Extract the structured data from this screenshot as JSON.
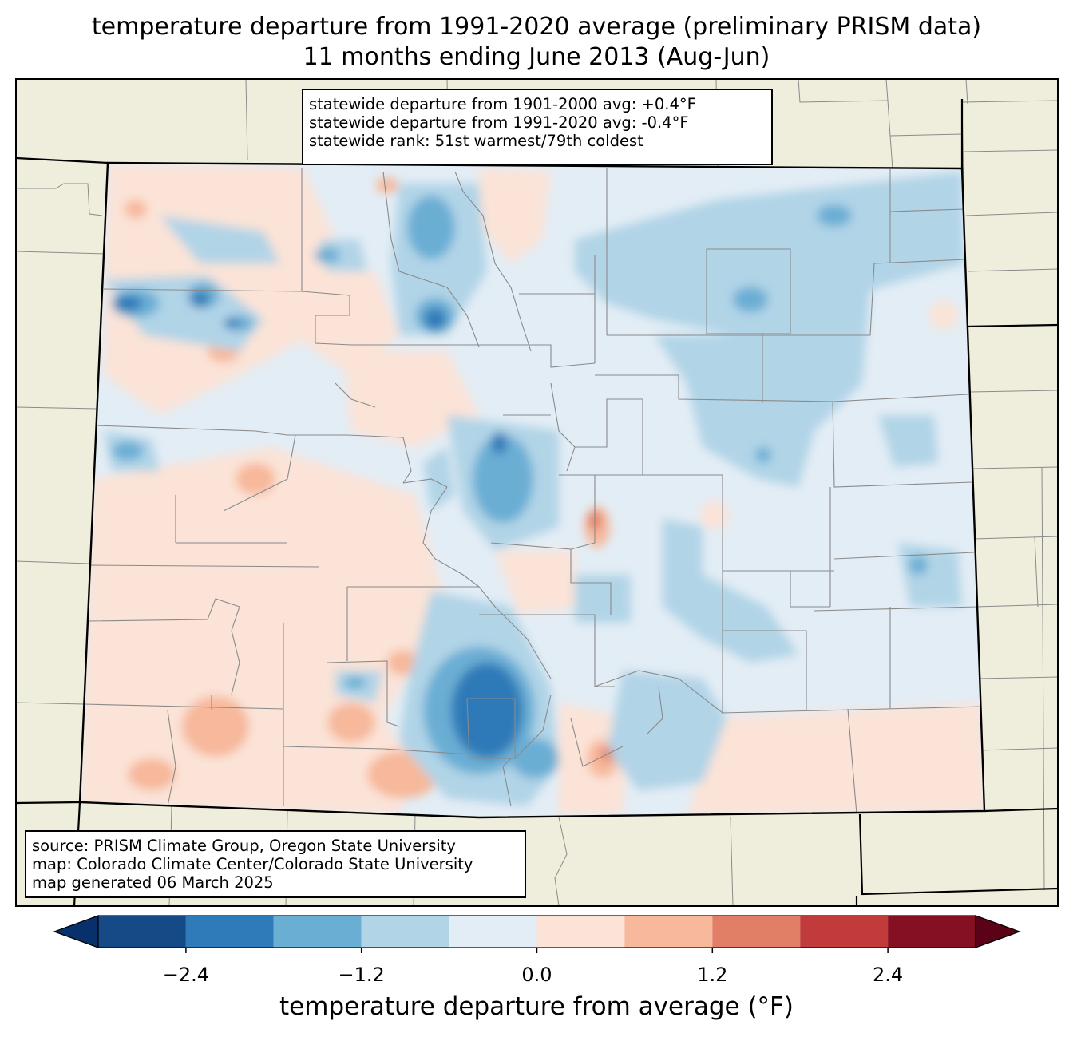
{
  "title": {
    "line1": "temperature departure from 1991-2020 average (preliminary PRISM data)",
    "line2": "11 months ending June 2013 (Aug-Jun)"
  },
  "stats_box": {
    "line1": "statewide departure from 1901-2000 avg: +0.4°F",
    "line2": "statewide departure from 1991-2020 avg: -0.4°F",
    "line3": "statewide rank: 51st warmest/79th coldest"
  },
  "source_box": {
    "line1": "source: PRISM Climate Group, Oregon State University",
    "line2": "map: Colorado Climate Center/Colorado State University",
    "line3": "map generated 06 March 2025"
  },
  "colorbar": {
    "label": "temperature departure from average (°F)",
    "ticks": [
      "−2.4",
      "−1.2",
      "0.0",
      "1.2",
      "2.4"
    ],
    "bins": [
      -3.0,
      -2.4,
      -1.8,
      -1.2,
      -0.6,
      0.0,
      0.6,
      1.2,
      1.8,
      2.4,
      3.0
    ],
    "colors": [
      "#08306b",
      "#154a86",
      "#2f7ab8",
      "#6aaed4",
      "#b1d4e7",
      "#e3edf5",
      "#fbe3d7",
      "#f7b89b",
      "#e07f66",
      "#c13b3b",
      "#850f23",
      "#5c0217"
    ]
  },
  "map": {
    "land_color": "#efeedd",
    "border_color": "#000000",
    "county_color": "#8a8a8a"
  }
}
